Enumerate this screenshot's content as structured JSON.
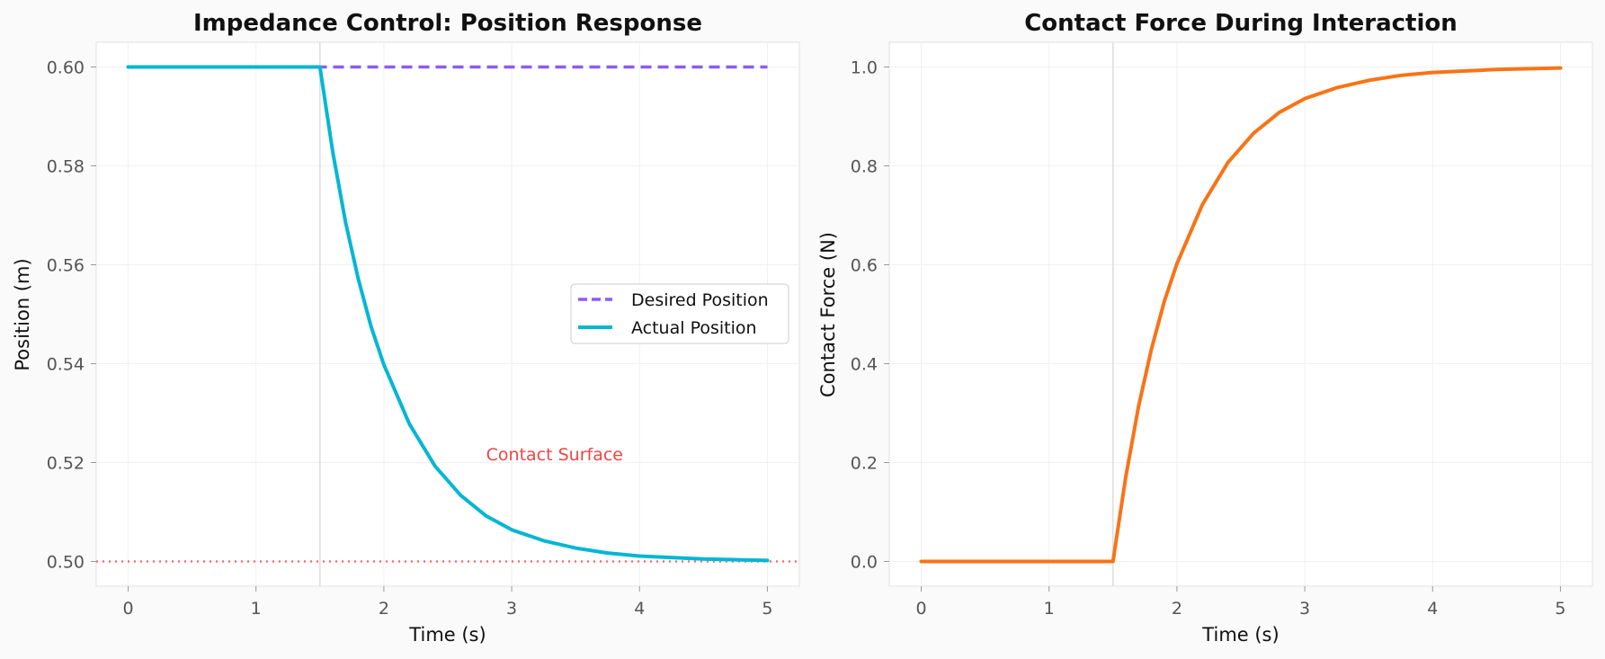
{
  "chart_data": [
    {
      "type": "line",
      "title": "Impedance Control: Position Response",
      "xlabel": "Time (s)",
      "ylabel": "Position (m)",
      "xlim": [
        -0.25,
        5.25
      ],
      "ylim": [
        0.495,
        0.605
      ],
      "xticks": [
        0,
        1,
        2,
        3,
        4,
        5
      ],
      "xtick_labels": [
        "0",
        "1",
        "2",
        "3",
        "4",
        "5"
      ],
      "yticks": [
        0.5,
        0.52,
        0.54,
        0.56,
        0.58,
        0.6
      ],
      "ytick_labels": [
        "0.50",
        "0.52",
        "0.54",
        "0.56",
        "0.58",
        "0.60"
      ],
      "grid": true,
      "legend_position": "center-right",
      "series": [
        {
          "name": "Desired Position",
          "style": "dashed",
          "color": "#8b5cf6",
          "x": [
            0,
            5
          ],
          "y": [
            0.6,
            0.6
          ]
        },
        {
          "name": "Actual Position",
          "style": "solid",
          "color": "#06b6d4",
          "x": [
            0,
            1.5,
            1.6,
            1.7,
            1.8,
            1.9,
            2.0,
            2.2,
            2.4,
            2.6,
            2.8,
            3.0,
            3.25,
            3.5,
            3.75,
            4.0,
            4.5,
            5.0
          ],
          "y": [
            0.6,
            0.6,
            0.5829,
            0.5686,
            0.5571,
            0.5475,
            0.5398,
            0.5278,
            0.5193,
            0.5134,
            0.5092,
            0.5064,
            0.5042,
            0.5027,
            0.5017,
            0.5011,
            0.5005,
            0.5002
          ]
        }
      ],
      "annotations": [
        {
          "text": "Contact Surface",
          "x": 2.8,
          "y": 0.5205,
          "color": "#ef4444"
        }
      ],
      "reference_lines": [
        {
          "orientation": "horizontal",
          "value": 0.5,
          "style": "dotted",
          "color": "#f87171"
        },
        {
          "orientation": "vertical",
          "value": 1.5,
          "style": "solid",
          "color": "#dddddd"
        }
      ]
    },
    {
      "type": "line",
      "title": "Contact Force During Interaction",
      "xlabel": "Time (s)",
      "ylabel": "Contact Force (N)",
      "xlim": [
        -0.25,
        5.25
      ],
      "ylim": [
        -0.05,
        1.05
      ],
      "xticks": [
        0,
        1,
        2,
        3,
        4,
        5
      ],
      "xtick_labels": [
        "0",
        "1",
        "2",
        "3",
        "4",
        "5"
      ],
      "yticks": [
        0.0,
        0.2,
        0.4,
        0.6,
        0.8,
        1.0
      ],
      "ytick_labels": [
        "0.0",
        "0.2",
        "0.4",
        "0.6",
        "0.8",
        "1.0"
      ],
      "grid": true,
      "series": [
        {
          "style": "solid",
          "color": "#f97316",
          "x": [
            0,
            1.5,
            1.6,
            1.7,
            1.8,
            1.9,
            2.0,
            2.2,
            2.4,
            2.6,
            2.8,
            3.0,
            3.25,
            3.5,
            3.75,
            4.0,
            4.5,
            5.0
          ],
          "y": [
            0.0,
            0.0,
            0.171,
            0.314,
            0.429,
            0.525,
            0.602,
            0.722,
            0.807,
            0.866,
            0.908,
            0.936,
            0.958,
            0.973,
            0.983,
            0.989,
            0.995,
            0.998
          ]
        }
      ],
      "reference_lines": [
        {
          "orientation": "vertical",
          "value": 1.5,
          "style": "solid",
          "color": "#dddddd"
        }
      ]
    }
  ]
}
